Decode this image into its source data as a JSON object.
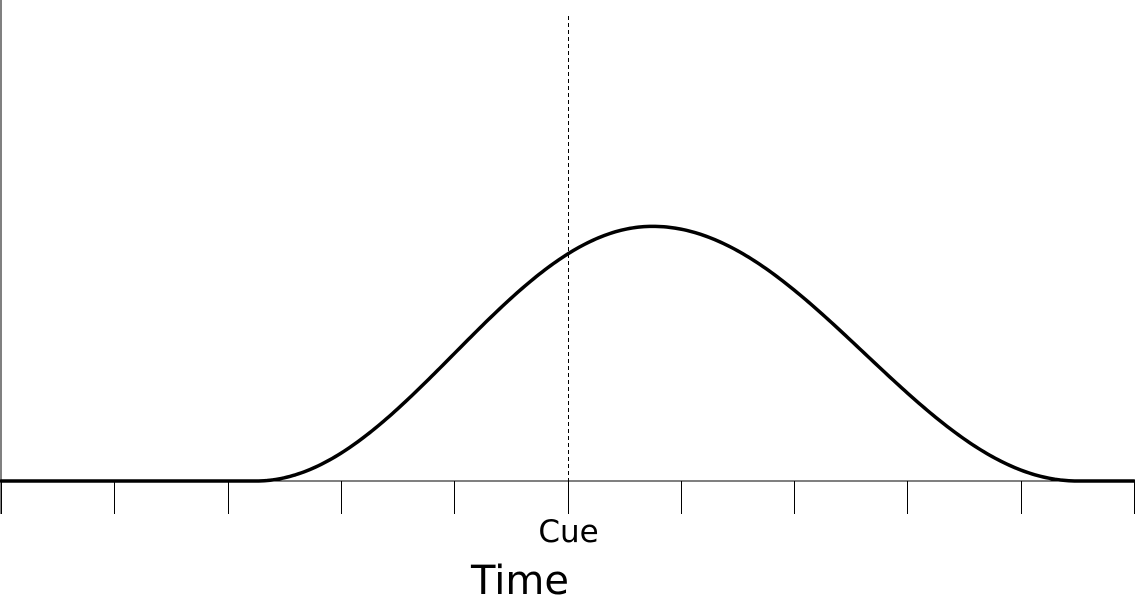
{
  "diagram": {
    "type": "line",
    "x_axis_label": "Time",
    "cue_label": "Cue",
    "x_range": [
      -5,
      5
    ],
    "y_range": [
      0,
      1
    ],
    "tick_positions": [
      -5,
      -4,
      -3,
      -2,
      -1,
      0,
      1,
      2,
      3,
      4,
      5
    ],
    "cue_position": 0,
    "curve": {
      "baseline_until": -2.75,
      "peak_x": 0.75,
      "peak_y": 0.55,
      "end_at": 4.5,
      "value_at_cue": 0.49
    },
    "colors": {
      "line": "#000000",
      "background": "#ffffff"
    }
  }
}
